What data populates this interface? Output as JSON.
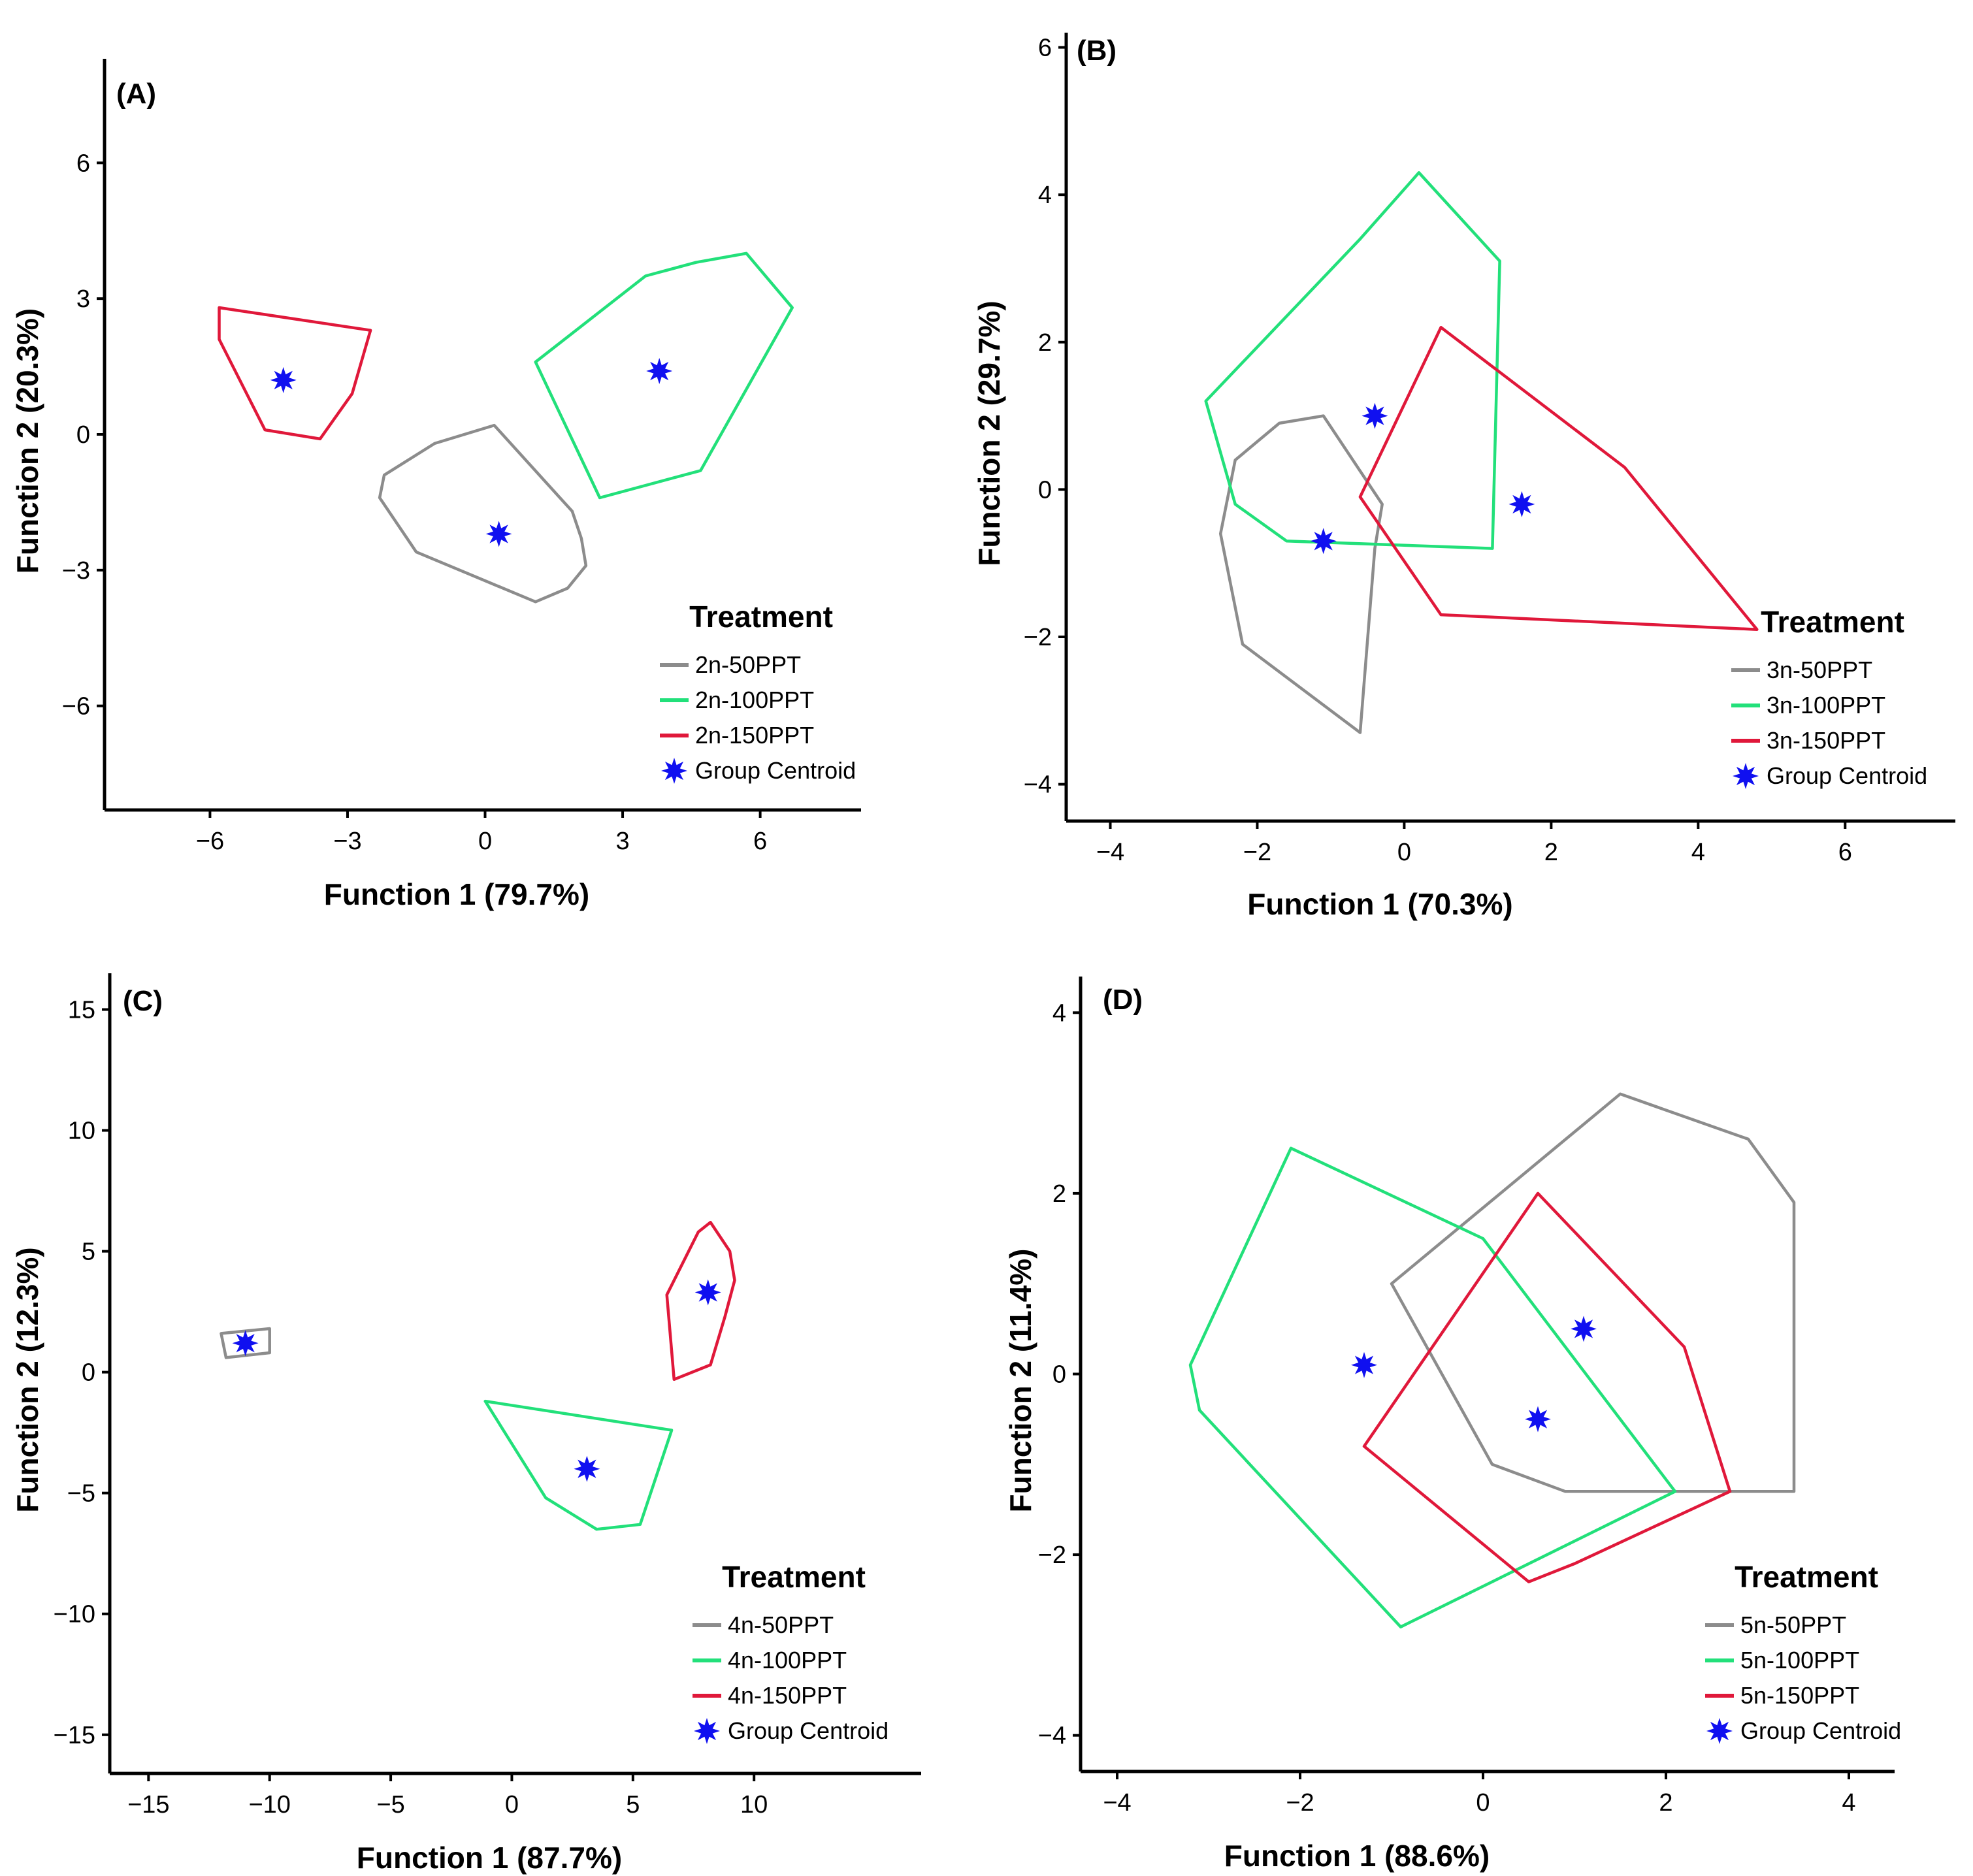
{
  "colors": {
    "grey": "#8c8c8c",
    "green": "#22e07a",
    "red": "#e0183a",
    "centroid": "#1010f0",
    "axis": "#000000"
  },
  "chart_data": [
    {
      "type": "scatter",
      "panel_label": "(A)",
      "xlabel": "Function 1 (79.7%)",
      "ylabel": "Function 2 (20.3%)",
      "xlim": [
        -8.3,
        8.2
      ],
      "ylim": [
        -8.3,
        8.3
      ],
      "xticks": [
        -6,
        -3,
        0,
        3,
        6
      ],
      "xtick_labels": [
        "−6",
        "−3",
        "0",
        "3",
        "6"
      ],
      "yticks": [
        -6,
        -3,
        0,
        3,
        6
      ],
      "ytick_labels": [
        "−6",
        "−3",
        "0",
        "3",
        "6"
      ],
      "legend": {
        "title": "Treatment",
        "position": "bottom-right"
      },
      "series": [
        {
          "name": "2n-50PPT",
          "color": "grey",
          "hull": [
            [
              0.2,
              0.2
            ],
            [
              1.9,
              -1.7
            ],
            [
              2.1,
              -2.3
            ],
            [
              2.2,
              -2.9
            ],
            [
              1.8,
              -3.4
            ],
            [
              1.1,
              -3.7
            ],
            [
              -1.5,
              -2.6
            ],
            [
              -2.3,
              -1.4
            ],
            [
              -2.2,
              -0.9
            ],
            [
              -1.1,
              -0.2
            ]
          ],
          "centroid": [
            0.3,
            -2.2
          ]
        },
        {
          "name": "2n-100PPT",
          "color": "green",
          "hull": [
            [
              1.1,
              1.6
            ],
            [
              3.5,
              3.5
            ],
            [
              4.6,
              3.8
            ],
            [
              5.7,
              4.0
            ],
            [
              6.7,
              2.8
            ],
            [
              4.7,
              -0.8
            ],
            [
              2.5,
              -1.4
            ]
          ],
          "centroid": [
            3.8,
            1.4
          ]
        },
        {
          "name": "2n-150PPT",
          "color": "red",
          "hull": [
            [
              -5.8,
              2.8
            ],
            [
              -2.5,
              2.3
            ],
            [
              -2.9,
              0.9
            ],
            [
              -3.6,
              -0.1
            ],
            [
              -4.8,
              0.1
            ],
            [
              -5.8,
              2.1
            ]
          ],
          "centroid": [
            -4.4,
            1.2
          ]
        }
      ],
      "centroid_label": "Group Centroid"
    },
    {
      "type": "scatter",
      "panel_label": "(B)",
      "xlabel": "Function 1 (70.3%)",
      "ylabel": "Function 2 (29.7%)",
      "xlim": [
        -4.6,
        7.5
      ],
      "ylim": [
        -4.5,
        6.2
      ],
      "xticks": [
        -4,
        -2,
        0,
        2,
        4,
        6
      ],
      "xtick_labels": [
        "−4",
        "−2",
        "0",
        "2",
        "4",
        "6"
      ],
      "yticks": [
        -4,
        -2,
        0,
        2,
        4,
        6
      ],
      "ytick_labels": [
        "−4",
        "−2",
        "0",
        "2",
        "4",
        "6"
      ],
      "legend": {
        "title": "Treatment",
        "position": "bottom-right"
      },
      "series": [
        {
          "name": "3n-50PPT",
          "color": "grey",
          "hull": [
            [
              -1.1,
              1.0
            ],
            [
              -0.3,
              -0.2
            ],
            [
              -0.4,
              -0.8
            ],
            [
              -0.6,
              -3.3
            ],
            [
              -2.2,
              -2.1
            ],
            [
              -2.5,
              -0.6
            ],
            [
              -2.3,
              0.4
            ],
            [
              -1.7,
              0.9
            ]
          ],
          "centroid": [
            -1.1,
            -0.7
          ]
        },
        {
          "name": "3n-100PPT",
          "color": "green",
          "hull": [
            [
              -2.7,
              1.2
            ],
            [
              -0.6,
              3.4
            ],
            [
              0.2,
              4.3
            ],
            [
              1.3,
              3.1
            ],
            [
              1.2,
              -0.8
            ],
            [
              -1.6,
              -0.7
            ],
            [
              -2.3,
              -0.2
            ]
          ],
          "centroid": [
            -0.4,
            1.0
          ]
        },
        {
          "name": "3n-150PPT",
          "color": "red",
          "hull": [
            [
              0.5,
              2.2
            ],
            [
              3.0,
              0.3
            ],
            [
              4.8,
              -1.9
            ],
            [
              0.5,
              -1.7
            ],
            [
              -0.6,
              -0.1
            ]
          ],
          "centroid": [
            1.6,
            -0.2
          ]
        }
      ],
      "centroid_label": "Group Centroid"
    },
    {
      "type": "scatter",
      "panel_label": "(C)",
      "xlabel": "Function 1 (87.7%)",
      "ylabel": "Function 2 (12.3%)",
      "xlim": [
        -16.6,
        16.9
      ],
      "ylim": [
        -16.6,
        16.5
      ],
      "xticks": [
        -15,
        -10,
        -5,
        0,
        5,
        10
      ],
      "xtick_labels": [
        "−15",
        "−10",
        "−5",
        "0",
        "5",
        "10"
      ],
      "yticks": [
        -15,
        -10,
        -5,
        0,
        5,
        10,
        15
      ],
      "ytick_labels": [
        "−15",
        "−10",
        "−5",
        "0",
        "5",
        "10",
        "15"
      ],
      "legend": {
        "title": "Treatment",
        "position": "bottom-right"
      },
      "series": [
        {
          "name": "4n-50PPT",
          "color": "grey",
          "hull": [
            [
              -12.0,
              1.6
            ],
            [
              -10.0,
              1.8
            ],
            [
              -10.0,
              0.8
            ],
            [
              -11.8,
              0.6
            ]
          ],
          "centroid": [
            -11.0,
            1.2
          ]
        },
        {
          "name": "4n-100PPT",
          "color": "green",
          "hull": [
            [
              -1.1,
              -1.2
            ],
            [
              6.6,
              -2.4
            ],
            [
              5.3,
              -6.3
            ],
            [
              3.5,
              -6.5
            ],
            [
              1.4,
              -5.2
            ]
          ],
          "centroid": [
            3.1,
            -4.0
          ]
        },
        {
          "name": "4n-150PPT",
          "color": "red",
          "hull": [
            [
              7.7,
              5.8
            ],
            [
              8.2,
              6.2
            ],
            [
              9.0,
              5.0
            ],
            [
              9.2,
              3.8
            ],
            [
              8.8,
              2.3
            ],
            [
              8.2,
              0.3
            ],
            [
              6.7,
              -0.3
            ],
            [
              6.4,
              3.2
            ]
          ],
          "centroid": [
            8.1,
            3.3
          ]
        }
      ],
      "centroid_label": "Group Centroid"
    },
    {
      "type": "scatter",
      "panel_label": "(D)",
      "xlabel": "Function 1 (88.6%)",
      "ylabel": "Function 2 (11.4%)",
      "xlim": [
        -4.4,
        4.5
      ],
      "ylim": [
        -4.4,
        4.4
      ],
      "xticks": [
        -4,
        -2,
        0,
        2,
        4
      ],
      "xtick_labels": [
        "−4",
        "−2",
        "0",
        "2",
        "4"
      ],
      "yticks": [
        -4,
        -2,
        0,
        2,
        4
      ],
      "ytick_labels": [
        "−4",
        "−2",
        "0",
        "2",
        "4"
      ],
      "legend": {
        "title": "Treatment",
        "position": "bottom-right"
      },
      "series": [
        {
          "name": "5n-50PPT",
          "color": "grey",
          "hull": [
            [
              -1.0,
              1.0
            ],
            [
              1.5,
              3.1
            ],
            [
              2.9,
              2.6
            ],
            [
              3.4,
              1.9
            ],
            [
              3.4,
              -1.3
            ],
            [
              0.9,
              -1.3
            ],
            [
              0.1,
              -1.0
            ]
          ],
          "centroid": [
            1.1,
            0.5
          ]
        },
        {
          "name": "5n-100PPT",
          "color": "green",
          "hull": [
            [
              -2.1,
              2.5
            ],
            [
              0.0,
              1.5
            ],
            [
              2.1,
              -1.3
            ],
            [
              -0.9,
              -2.8
            ],
            [
              -3.1,
              -0.4
            ],
            [
              -3.2,
              0.1
            ]
          ],
          "centroid": [
            -1.3,
            0.1
          ]
        },
        {
          "name": "5n-150PPT",
          "color": "red",
          "hull": [
            [
              0.6,
              2.0
            ],
            [
              2.2,
              0.3
            ],
            [
              2.7,
              -1.3
            ],
            [
              1.0,
              -2.1
            ],
            [
              0.5,
              -2.3
            ],
            [
              -1.3,
              -0.8
            ]
          ],
          "centroid": [
            0.6,
            -0.5
          ]
        }
      ],
      "centroid_label": "Group Centroid"
    }
  ]
}
